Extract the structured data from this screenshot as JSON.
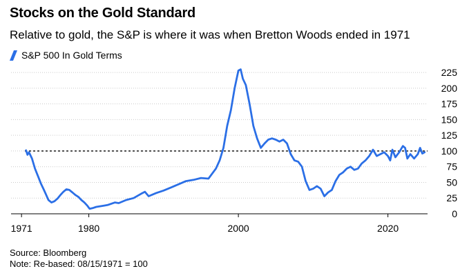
{
  "title": "Stocks on the Gold Standard",
  "subtitle": "Relative to gold, the S&P is where it was when Bretton Woods ended in 1971",
  "legend": {
    "label": "S&P 500 In Gold Terms",
    "color": "#2b6fe6"
  },
  "footer": {
    "source": "Source: Bloomberg",
    "note": "Note: Re-based: 08/15/1971 = 100"
  },
  "chart_data": {
    "type": "line",
    "title": "Stocks on the Gold Standard",
    "subtitle": "Relative to gold, the S&P is where it was when Bretton Woods ended in 1971",
    "xlabel": "",
    "ylabel": "",
    "xlim": [
      1969.6,
      2025.3
    ],
    "ylim": [
      0,
      235
    ],
    "x_ticks": [
      "1971",
      "1980",
      "2000",
      "2020"
    ],
    "x_tick_values": [
      1971,
      1980,
      2000,
      2020
    ],
    "y_ticks": [
      0,
      25,
      50,
      75,
      100,
      125,
      150,
      175,
      200,
      225
    ],
    "y_axis_side": "right",
    "grid": "horizontal dotted",
    "legend_position": "top-left",
    "reference_line": {
      "y": 100,
      "style": "dashed",
      "color": "#000000"
    },
    "series": [
      {
        "name": "S&P 500 In Gold Terms",
        "color": "#2b6fe6",
        "x": [
          1971.6,
          1971.8,
          1972.0,
          1972.4,
          1972.8,
          1973.2,
          1973.6,
          1974.0,
          1974.3,
          1974.6,
          1975.0,
          1975.4,
          1975.8,
          1976.2,
          1976.6,
          1977.0,
          1977.4,
          1977.8,
          1978.2,
          1978.6,
          1979.0,
          1979.4,
          1979.8,
          1980.1,
          1980.5,
          1981.0,
          1981.5,
          1982.0,
          1982.5,
          1983.0,
          1983.5,
          1984.0,
          1985.0,
          1986.0,
          1987.0,
          1987.5,
          1988.0,
          1989.0,
          1990.0,
          1991.0,
          1992.0,
          1993.0,
          1994.0,
          1995.0,
          1996.0,
          1997.0,
          1997.5,
          1998.0,
          1998.5,
          1999.0,
          1999.5,
          2000.0,
          2000.3,
          2000.6,
          2001.0,
          2001.5,
          2002.0,
          2002.5,
          2003.0,
          2003.5,
          2004.0,
          2004.5,
          2005.0,
          2005.5,
          2006.0,
          2006.5,
          2007.0,
          2007.5,
          2008.0,
          2008.5,
          2009.0,
          2009.5,
          2010.0,
          2010.5,
          2011.0,
          2011.5,
          2012.0,
          2012.5,
          2013.0,
          2013.5,
          2014.0,
          2014.5,
          2015.0,
          2015.5,
          2016.0,
          2016.5,
          2017.0,
          2017.5,
          2018.0,
          2018.5,
          2019.0,
          2019.5,
          2020.0,
          2020.3,
          2020.6,
          2021.0,
          2021.5,
          2022.0,
          2022.3,
          2022.6,
          2023.0,
          2023.5,
          2024.0,
          2024.3,
          2024.6,
          2024.9
        ],
        "y": [
          101,
          94,
          98,
          88,
          72,
          60,
          48,
          38,
          30,
          22,
          18,
          20,
          24,
          30,
          35,
          39,
          38,
          34,
          30,
          27,
          22,
          18,
          13,
          8,
          9,
          11,
          12,
          13,
          14,
          16,
          18,
          17,
          22,
          25,
          32,
          35,
          28,
          33,
          37,
          42,
          47,
          52,
          54,
          57,
          56,
          72,
          85,
          105,
          140,
          165,
          200,
          228,
          230,
          215,
          205,
          175,
          140,
          120,
          105,
          112,
          118,
          120,
          118,
          115,
          118,
          112,
          95,
          85,
          83,
          75,
          52,
          38,
          40,
          44,
          40,
          28,
          34,
          38,
          52,
          62,
          66,
          72,
          75,
          70,
          72,
          80,
          85,
          92,
          102,
          92,
          95,
          98,
          92,
          85,
          102,
          90,
          98,
          108,
          105,
          88,
          95,
          88,
          95,
          105,
          96,
          98
        ]
      }
    ]
  }
}
